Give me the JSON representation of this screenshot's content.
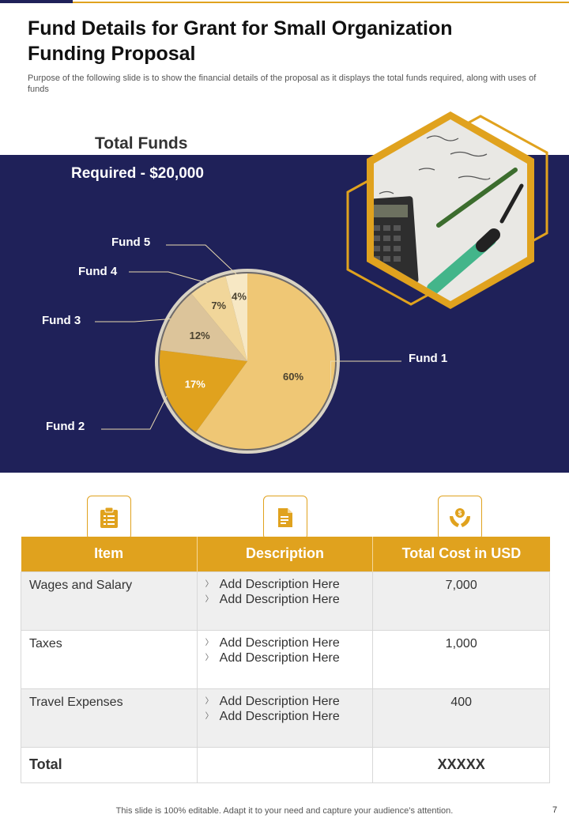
{
  "header": {
    "title": "Fund Details for Grant for Small Organization Funding Proposal",
    "subtitle": "Purpose of the following slide is to show the financial details of the proposal as it displays the total funds required, along with uses of funds"
  },
  "funds": {
    "heading": "Total Funds",
    "required": "Required  - $20,000"
  },
  "chart_data": {
    "type": "pie",
    "slices": [
      {
        "label": "Fund 1",
        "value": 60,
        "text": "60%",
        "color": "#efc775"
      },
      {
        "label": "Fund 2",
        "value": 17,
        "text": "17%",
        "color": "#e0a21e"
      },
      {
        "label": "Fund 3",
        "value": 12,
        "text": "12%",
        "color": "#dcc49a"
      },
      {
        "label": "Fund 4",
        "value": 7,
        "text": "7%",
        "color": "#f1d69a"
      },
      {
        "label": "Fund 5",
        "value": 4,
        "text": "4%",
        "color": "#f7e8c4"
      }
    ]
  },
  "icons": [
    "clipboard-icon",
    "document-icon",
    "money-hands-icon"
  ],
  "table": {
    "headers": [
      "Item",
      "Description",
      "Total Cost in USD"
    ],
    "rows": [
      {
        "item": "Wages and Salary",
        "desc": [
          "Add Description Here",
          "Add Description Here"
        ],
        "cost": "7,000"
      },
      {
        "item": "Taxes",
        "desc": [
          "Add Description Here",
          "Add Description Here"
        ],
        "cost": "1,000"
      },
      {
        "item": "Travel Expenses",
        "desc": [
          "Add Description Here",
          "Add Description Here"
        ],
        "cost": "400"
      }
    ],
    "total_label": "Total",
    "total_value": "XXXXX"
  },
  "footer": {
    "note": "This slide is 100% editable. Adapt it to your need and capture your audience’s attention.",
    "page": "7"
  },
  "colors": {
    "navy": "#1f2159",
    "gold": "#e0a21e"
  }
}
